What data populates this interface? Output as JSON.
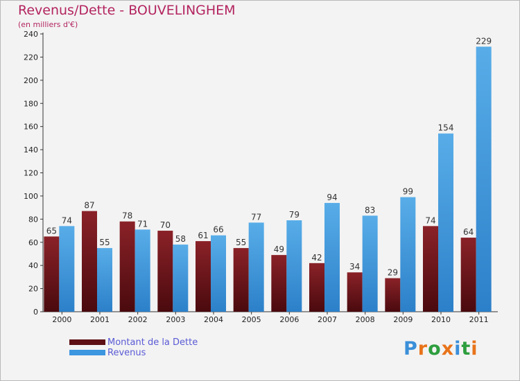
{
  "chart_data": {
    "type": "bar",
    "title": "Revenus/Dette - BOUVELINGHEM",
    "subtitle": "(en milliers d'€)",
    "categories": [
      "2000",
      "2001",
      "2002",
      "2003",
      "2004",
      "2005",
      "2006",
      "2007",
      "2008",
      "2009",
      "2010",
      "2011"
    ],
    "series": [
      {
        "name": "Montant de la Dette",
        "color": "#7a1a1f",
        "values": [
          65,
          87,
          78,
          70,
          61,
          55,
          49,
          42,
          34,
          29,
          74,
          64
        ]
      },
      {
        "name": "Revenus",
        "color": "#3d96e0",
        "values": [
          74,
          55,
          71,
          58,
          66,
          77,
          79,
          94,
          83,
          99,
          154,
          229
        ]
      }
    ],
    "y_ticks": [
      0,
      20,
      40,
      60,
      80,
      100,
      120,
      140,
      160,
      180,
      200,
      220,
      240
    ],
    "ylim": [
      0,
      240
    ],
    "grid": false,
    "legend_position": "bottom-left"
  },
  "logo": {
    "text": "Proxiti",
    "letter_colors": [
      "#3a8fd9",
      "#e8731a",
      "#2e9e3e",
      "#e8731a",
      "#3a8fd9",
      "#2e9e3e",
      "#e8731a"
    ]
  }
}
